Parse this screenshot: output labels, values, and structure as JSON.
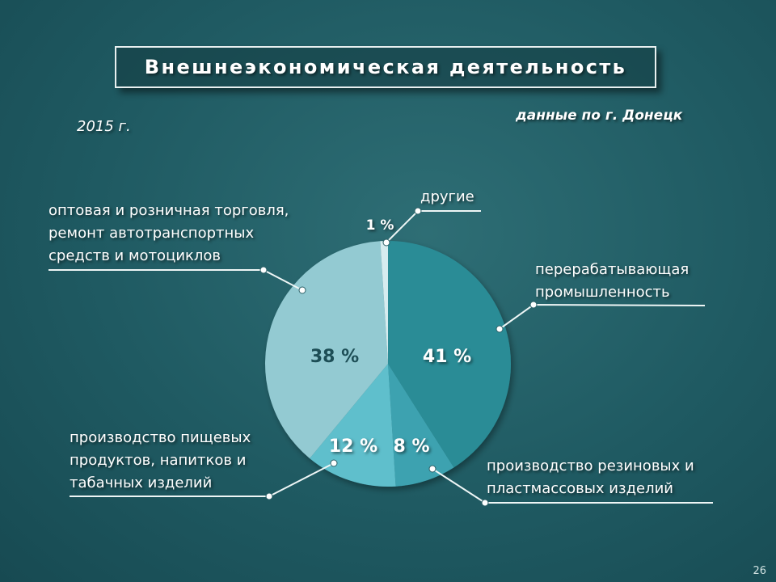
{
  "header": {
    "title": "Внешнеэкономическая деятельность",
    "year": "2015 г.",
    "source": "данные по г. Донецк"
  },
  "page_number": "26",
  "chart_data": {
    "type": "pie",
    "slices": [
      {
        "label": "перерабатывающая промышленность",
        "value": 41,
        "value_label": "41 %",
        "color": "#2a8c96"
      },
      {
        "label": "производство резиновых и пластмассовых изделий",
        "value": 8,
        "value_label": "8 %",
        "color": "#3ea2b0"
      },
      {
        "label": "производство пищевых продуктов, напитков и табачных изделий",
        "value": 12,
        "value_label": "12 %",
        "color": "#5fbfcc"
      },
      {
        "label": "оптовая и розничная торговля, ремонт автотранспортных средств и мотоциклов",
        "value": 38,
        "value_label": "38 %",
        "color": "#93cad2"
      },
      {
        "label": "другие",
        "value": 1,
        "value_label": "1 %",
        "color": "#d6ecef"
      }
    ],
    "start_angle_deg": 0,
    "direction": "clockwise"
  }
}
